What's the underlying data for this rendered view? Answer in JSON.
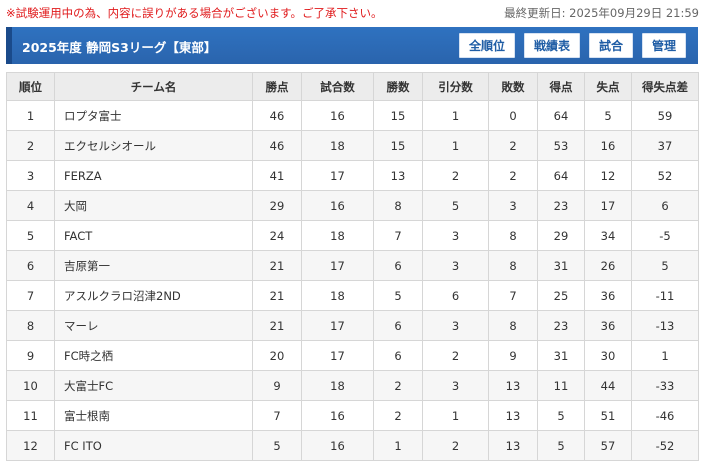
{
  "notice": "※試験運用中の為、内容に誤りがある場合がございます。ご了承下さい。",
  "updated": "最終更新日: 2025年09月29日 21:59",
  "title": "2025年度 静岡S3リーグ【東部】",
  "nav": [
    "全順位",
    "戦績表",
    "試合",
    "管理"
  ],
  "columns": [
    "順位",
    "チーム名",
    "勝点",
    "試合数",
    "勝数",
    "引分数",
    "敗数",
    "得点",
    "失点",
    "得失点差"
  ],
  "rows": [
    [
      "1",
      "ロプタ富士",
      "46",
      "16",
      "15",
      "1",
      "0",
      "64",
      "5",
      "59"
    ],
    [
      "2",
      "エクセルシオール",
      "46",
      "18",
      "15",
      "1",
      "2",
      "53",
      "16",
      "37"
    ],
    [
      "3",
      "FERZA",
      "41",
      "17",
      "13",
      "2",
      "2",
      "64",
      "12",
      "52"
    ],
    [
      "4",
      "大岡",
      "29",
      "16",
      "8",
      "5",
      "3",
      "23",
      "17",
      "6"
    ],
    [
      "5",
      "FACT",
      "24",
      "18",
      "7",
      "3",
      "8",
      "29",
      "34",
      "-5"
    ],
    [
      "6",
      "吉原第一",
      "21",
      "17",
      "6",
      "3",
      "8",
      "31",
      "26",
      "5"
    ],
    [
      "7",
      "アスルクラロ沼津2ND",
      "21",
      "18",
      "5",
      "6",
      "7",
      "25",
      "36",
      "-11"
    ],
    [
      "8",
      "マーレ",
      "21",
      "17",
      "6",
      "3",
      "8",
      "23",
      "36",
      "-13"
    ],
    [
      "9",
      "FC時之栖",
      "20",
      "17",
      "6",
      "2",
      "9",
      "31",
      "30",
      "1"
    ],
    [
      "10",
      "大富士FC",
      "9",
      "18",
      "2",
      "3",
      "13",
      "11",
      "44",
      "-33"
    ],
    [
      "11",
      "富士根南",
      "7",
      "16",
      "2",
      "1",
      "13",
      "5",
      "51",
      "-46"
    ],
    [
      "12",
      "FC ITO",
      "5",
      "16",
      "1",
      "2",
      "13",
      "5",
      "57",
      "-52"
    ]
  ]
}
